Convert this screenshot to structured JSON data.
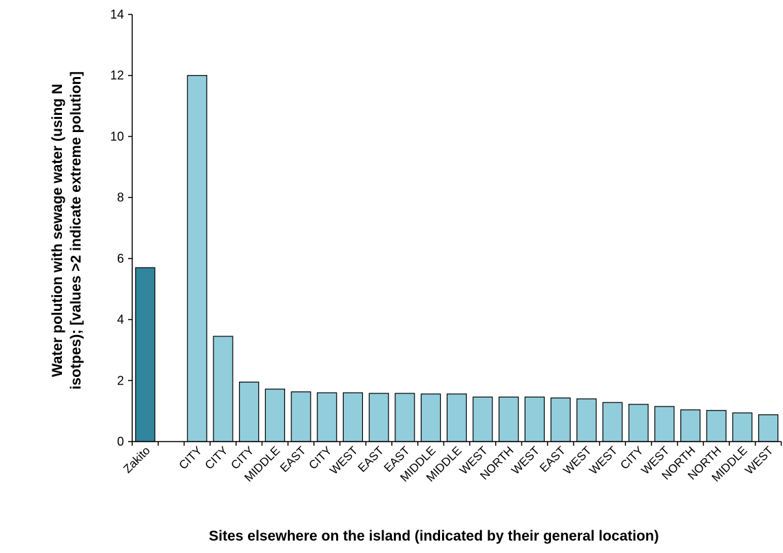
{
  "chart_data": {
    "type": "bar",
    "title": "",
    "xlabel": "Sites elsewhere on the island (indicated by their general location)",
    "ylabel_lines": [
      "Water polution with sewage water (using N",
      "isotpes); [values >2 indicate extreme polution]"
    ],
    "ylim": [
      0,
      14
    ],
    "yticks": [
      0,
      2,
      4,
      6,
      8,
      10,
      12,
      14
    ],
    "grid": false,
    "categories": [
      "Zakito",
      "",
      "CITY",
      "CITY",
      "CITY",
      "MIDDLE",
      "EAST",
      "CITY",
      "WEST",
      "EAST",
      "EAST",
      "MIDDLE",
      "MIDDLE",
      "WEST",
      "NORTH",
      "WEST",
      "EAST",
      "WEST",
      "WEST",
      "CITY",
      "WEST",
      "NORTH",
      "NORTH",
      "MIDDLE",
      "WEST"
    ],
    "values": [
      5.7,
      null,
      12.0,
      3.45,
      1.95,
      1.72,
      1.63,
      1.6,
      1.6,
      1.58,
      1.58,
      1.56,
      1.56,
      1.46,
      1.46,
      1.46,
      1.43,
      1.4,
      1.28,
      1.22,
      1.15,
      1.04,
      1.02,
      0.94,
      0.88
    ],
    "highlight_index": 0,
    "colors": {
      "highlight": "#31859C",
      "bar": "#92CDDC",
      "border": "#000000"
    }
  }
}
